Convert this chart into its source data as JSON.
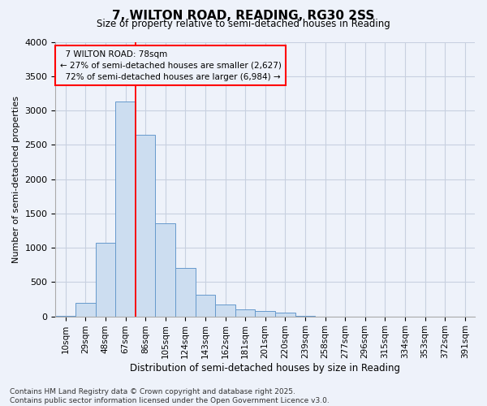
{
  "title": "7, WILTON ROAD, READING, RG30 2SS",
  "subtitle": "Size of property relative to semi-detached houses in Reading",
  "xlabel": "Distribution of semi-detached houses by size in Reading",
  "ylabel": "Number of semi-detached properties",
  "bar_color": "#ccddf0",
  "bar_edge_color": "#6699cc",
  "categories": [
    "10sqm",
    "29sqm",
    "48sqm",
    "67sqm",
    "86sqm",
    "105sqm",
    "124sqm",
    "143sqm",
    "162sqm",
    "181sqm",
    "201sqm",
    "220sqm",
    "239sqm",
    "258sqm",
    "277sqm",
    "296sqm",
    "315sqm",
    "334sqm",
    "353sqm",
    "372sqm",
    "391sqm"
  ],
  "values": [
    8,
    200,
    1070,
    3130,
    2640,
    1360,
    710,
    310,
    175,
    100,
    75,
    55,
    10,
    0,
    0,
    0,
    0,
    0,
    0,
    0,
    0
  ],
  "ylim": [
    0,
    4000
  ],
  "yticks": [
    0,
    500,
    1000,
    1500,
    2000,
    2500,
    3000,
    3500,
    4000
  ],
  "property_label": "7 WILTON ROAD: 78sqm",
  "smaller_pct": "27%",
  "smaller_count": "2,627",
  "larger_pct": "72%",
  "larger_count": "6,984",
  "vline_x": 3.5,
  "footer": "Contains HM Land Registry data © Crown copyright and database right 2025.\nContains public sector information licensed under the Open Government Licence v3.0.",
  "grid_color": "#c8d0e0",
  "background_color": "#eef2fa"
}
